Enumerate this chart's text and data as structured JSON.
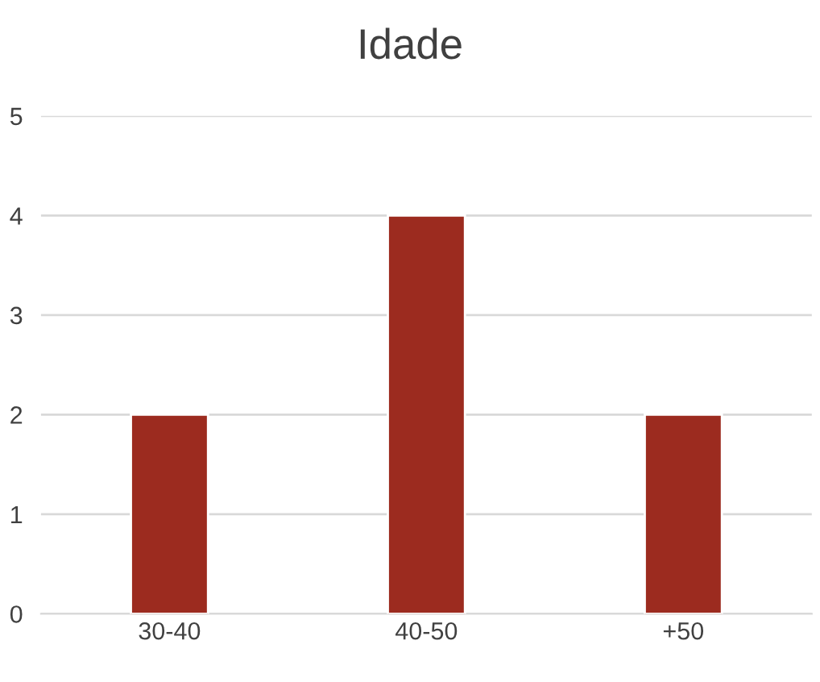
{
  "chart_data": {
    "type": "bar",
    "title": "Idade",
    "categories": [
      "30-40",
      "40-50",
      "+50"
    ],
    "values": [
      2,
      4,
      2
    ],
    "color": "#9c2b1f",
    "ylim": [
      0,
      5
    ],
    "yticks": [
      0,
      1,
      2,
      3,
      4,
      5
    ],
    "grid": "y",
    "legend": false
  }
}
